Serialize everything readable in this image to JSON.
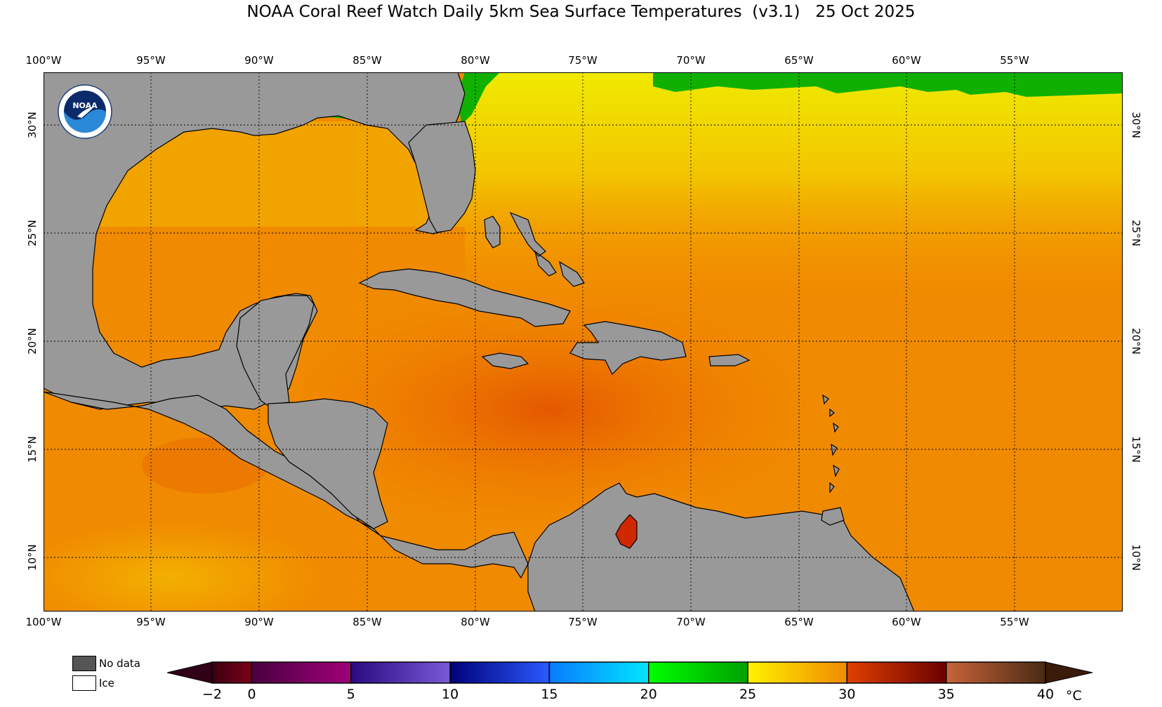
{
  "title": "NOAA Coral Reef Watch Daily 5km Sea Surface Temperatures  (v3.1)   25 Oct 2025",
  "longitude_labels": [
    "100°W",
    "95°W",
    "90°W",
    "85°W",
    "80°W",
    "75°W",
    "70°W",
    "65°W",
    "60°W",
    "55°W"
  ],
  "latitude_labels": [
    "30°N",
    "25°N",
    "20°N",
    "15°N",
    "10°N"
  ],
  "logo": {
    "icon": "noaa-logo-icon",
    "text": "NOAA"
  },
  "legend": {
    "no_data_label": "No data",
    "ice_label": "Ice",
    "no_data_color": "#555555",
    "ice_color": "#ffffff"
  },
  "colorbar": {
    "unit": "°C",
    "tick_labels": [
      "−2",
      "0",
      "5",
      "10",
      "15",
      "20",
      "25",
      "30",
      "35",
      "40"
    ],
    "tick_values": [
      -2,
      0,
      5,
      10,
      15,
      20,
      25,
      30,
      35,
      40
    ],
    "segments": [
      {
        "from": -2,
        "to": 0,
        "colors": [
          "#3a0010",
          "#7a0018"
        ]
      },
      {
        "from": 0,
        "to": 5,
        "colors": [
          "#4a0040",
          "#a0007a"
        ]
      },
      {
        "from": 5,
        "to": 10,
        "colors": [
          "#2a0a80",
          "#7a5ad8"
        ]
      },
      {
        "from": 10,
        "to": 15,
        "colors": [
          "#00007a",
          "#2a5aff"
        ]
      },
      {
        "from": 15,
        "to": 20,
        "colors": [
          "#0a7aff",
          "#00e6ff"
        ]
      },
      {
        "from": 20,
        "to": 25,
        "colors": [
          "#00ff00",
          "#00a000"
        ]
      },
      {
        "from": 25,
        "to": 30,
        "colors": [
          "#fff200",
          "#f08a00"
        ]
      },
      {
        "from": 30,
        "to": 35,
        "colors": [
          "#e04000",
          "#6a0000"
        ]
      },
      {
        "from": 35,
        "to": 40,
        "colors": [
          "#c8643a",
          "#4a2a14"
        ]
      }
    ],
    "under_color": "#300018",
    "over_color": "#3a1a08"
  },
  "colors": {
    "land": "#999999",
    "ocean_warm": "#f07a00",
    "ocean_hot": "#e86000",
    "ocean_cool": "#f2b800",
    "ocean_yellow": "#f0e800",
    "ocean_green": "#10b000",
    "hot_spot": "#d02800",
    "noaa_blue": "#1f5aa8"
  }
}
